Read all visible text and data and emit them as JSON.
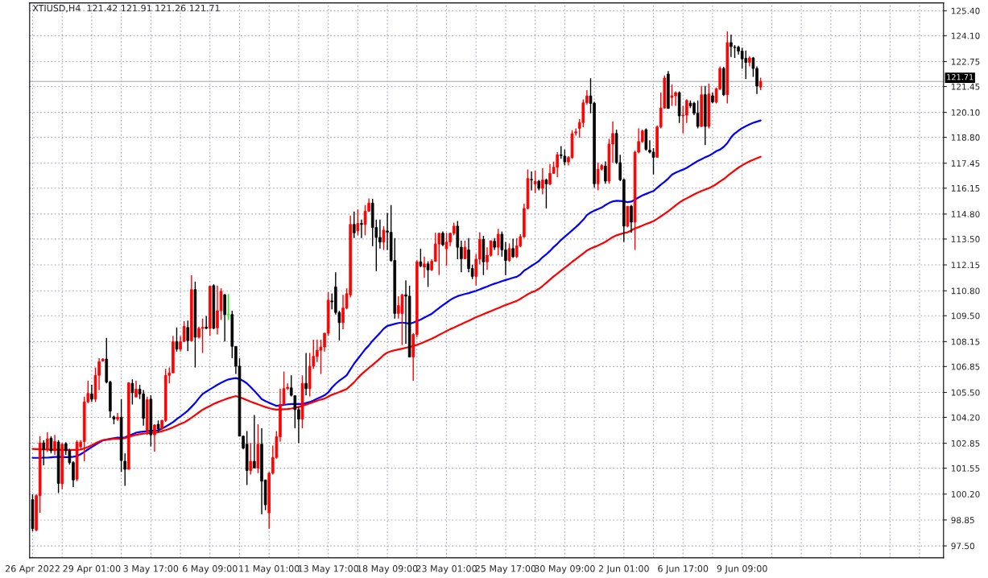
{
  "chart_data": {
    "type": "candlestick",
    "title": "XTIUSD,H4  121.42 121.91 121.26 121.71",
    "categories": [
      "26 Apr 2022",
      null,
      null,
      null,
      null,
      null,
      null,
      null,
      null,
      null,
      null,
      null,
      null,
      null,
      null,
      null,
      "29 Apr 01:00",
      null,
      null,
      null,
      null,
      null,
      null,
      null,
      null,
      null,
      null,
      null,
      null,
      null,
      null,
      null,
      "3 May 17:00",
      null,
      null,
      null,
      null,
      null,
      null,
      null,
      null,
      null,
      null,
      null,
      null,
      null,
      null,
      null,
      "6 May 09:00",
      null,
      null,
      null,
      null,
      null,
      null,
      null,
      null,
      null,
      null,
      null,
      null,
      null,
      null,
      null,
      "11 May 01:00",
      null,
      null,
      null,
      null,
      null,
      null,
      null,
      null,
      null,
      null,
      null,
      null,
      null,
      null,
      null,
      "13 May 17:00",
      null,
      null,
      null,
      null,
      null,
      null,
      null,
      null,
      null,
      null,
      null,
      null,
      null,
      null,
      null,
      "18 May 09:00",
      null,
      null,
      null,
      null,
      null,
      null,
      null,
      null,
      null,
      null,
      null,
      null,
      null,
      null,
      null,
      "23 May 01:00",
      null,
      null,
      null,
      null,
      null,
      null,
      null,
      null,
      null,
      null,
      null,
      null,
      null,
      null,
      null,
      "25 May 17:00",
      null,
      null,
      null,
      null,
      null,
      null,
      null,
      null,
      null,
      null,
      null,
      null,
      null,
      null,
      null,
      "30 May 09:00",
      null,
      null,
      null,
      null,
      null,
      null,
      null,
      null,
      null,
      null,
      null,
      null,
      null,
      null,
      null,
      "2 Jun 01:00",
      null,
      null,
      null,
      null,
      null,
      null,
      null,
      null,
      null,
      null,
      null,
      null,
      null,
      null,
      null,
      "6 Jun 17:00",
      null,
      null,
      null,
      null,
      null,
      null,
      null,
      null,
      null,
      null,
      null,
      null,
      null,
      null,
      null,
      "9 Jun 09:00",
      null,
      null,
      null,
      null,
      null
    ],
    "ohlc": [
      [
        99.91,
        100.19,
        98.26,
        98.4
      ],
      [
        98.33,
        100.19,
        98.26,
        100.12
      ],
      [
        100.12,
        103.22,
        99.22,
        102.87
      ],
      [
        102.87,
        103.01,
        101.7,
        102.53
      ],
      [
        102.53,
        103.42,
        102.39,
        103.08
      ],
      [
        103.11,
        103.22,
        102.32,
        102.46
      ],
      [
        102.46,
        103.29,
        102.25,
        102.94
      ],
      [
        102.91,
        103.01,
        100.25,
        100.76
      ],
      [
        100.74,
        102.87,
        100.46,
        102.8
      ],
      [
        102.83,
        102.91,
        102.25,
        102.46
      ],
      [
        102.46,
        102.56,
        101.73,
        101.84
      ],
      [
        101.84,
        101.91,
        100.57,
        100.94
      ],
      [
        100.98,
        103.01,
        100.87,
        102.91
      ],
      [
        102.67,
        103.01,
        102.53,
        102.91
      ],
      [
        102.94,
        105.28,
        101.91,
        105.01
      ],
      [
        105.01,
        106.11,
        104.94,
        105.45
      ],
      [
        105.42,
        105.9,
        105.01,
        105.15
      ],
      [
        105.15,
        106.8,
        105.01,
        106.39
      ],
      [
        106.39,
        107.28,
        105.63,
        107.1
      ],
      [
        107.14,
        107.28,
        107.1,
        107.24
      ],
      [
        107.24,
        108.34,
        105.97,
        106.04
      ],
      [
        106.04,
        106.11,
        104.18,
        104.53
      ],
      [
        104.22,
        104.29,
        103.84,
        104.11
      ],
      [
        104.11,
        104.43,
        104.02,
        104.21
      ],
      [
        104.21,
        105.15,
        101.36,
        101.95
      ],
      [
        101.91,
        102.32,
        100.63,
        101.49
      ],
      [
        101.49,
        106.04,
        101.49,
        106.0
      ],
      [
        105.97,
        106.18,
        104.87,
        105.49
      ],
      [
        105.26,
        106.11,
        105.26,
        105.67
      ],
      [
        105.67,
        105.9,
        105.15,
        105.42
      ],
      [
        105.42,
        105.63,
        103.77,
        104.15
      ],
      [
        103.49,
        105.28,
        103.29,
        105.12
      ],
      [
        105.15,
        105.35,
        102.69,
        103.29
      ],
      [
        103.29,
        103.84,
        102.42,
        103.8
      ],
      [
        103.84,
        104.04,
        103.42,
        103.6
      ],
      [
        103.6,
        104.07,
        103.56,
        104.04
      ],
      [
        104.04,
        106.73,
        103.97,
        106.39
      ],
      [
        106.39,
        106.8,
        105.97,
        106.52
      ],
      [
        106.52,
        108.45,
        106.52,
        108.15
      ],
      [
        108.15,
        108.89,
        107.63,
        107.76
      ],
      [
        107.76,
        108.45,
        107.63,
        108.15
      ],
      [
        108.15,
        109.21,
        108.15,
        108.94
      ],
      [
        108.89,
        109.25,
        107.65,
        108.2
      ],
      [
        108.2,
        111.62,
        108.15,
        110.86
      ],
      [
        110.86,
        111.28,
        106.8,
        108.38
      ],
      [
        108.38,
        108.93,
        108.31,
        108.84
      ],
      [
        108.84,
        109.35,
        107.56,
        108.89
      ],
      [
        108.91,
        109.49,
        108.8,
        108.84
      ],
      [
        108.84,
        111.04,
        108.45,
        111.04
      ],
      [
        111.07,
        111.14,
        108.8,
        108.84
      ],
      [
        108.87,
        111.07,
        108.52,
        109.76
      ],
      [
        109.76,
        110.93,
        109.28,
        110.77
      ],
      [
        110.59,
        110.63,
        108.15,
        109.56
      ],
      [
        109.56,
        110.63,
        109.28,
        109.56
      ],
      [
        109.56,
        109.76,
        107.28,
        107.9
      ],
      [
        107.9,
        107.9,
        106.46,
        106.87
      ],
      [
        106.87,
        107.28,
        103.22,
        103.22
      ],
      [
        103.22,
        103.25,
        102.53,
        102.6
      ],
      [
        102.8,
        103.49,
        100.67,
        101.43
      ],
      [
        101.43,
        102.87,
        101.22,
        101.91
      ],
      [
        101.91,
        104.32,
        101.56,
        101.56
      ],
      [
        101.56,
        103.84,
        101.29,
        102.8
      ],
      [
        102.8,
        103.63,
        99.15,
        100.88
      ],
      [
        100.94,
        100.94,
        99.36,
        99.64
      ],
      [
        99.22,
        101.36,
        98.4,
        101.29
      ],
      [
        101.29,
        102.73,
        101.22,
        102.11
      ],
      [
        102.11,
        103.49,
        102.05,
        103.19
      ],
      [
        103.19,
        105.7,
        102.94,
        104.87
      ],
      [
        104.87,
        106.59,
        104.87,
        105.7
      ],
      [
        105.7,
        105.97,
        105.63,
        105.77
      ],
      [
        105.74,
        106.39,
        105.29,
        105.35
      ],
      [
        105.33,
        105.35,
        103.63,
        104.6
      ],
      [
        104.6,
        104.73,
        102.87,
        104.11
      ],
      [
        104.11,
        106.39,
        103.63,
        105.97
      ],
      [
        105.97,
        107.56,
        105.35,
        105.7
      ],
      [
        105.7,
        107.56,
        105.29,
        106.87
      ],
      [
        106.87,
        108.25,
        106.73,
        107.38
      ],
      [
        107.38,
        108.25,
        107.08,
        107.7
      ],
      [
        107.7,
        108.25,
        106.46,
        107.87
      ],
      [
        107.87,
        108.59,
        107.63,
        108.59
      ],
      [
        108.59,
        110.73,
        108.45,
        110.31
      ],
      [
        110.27,
        110.66,
        109.83,
        110.22
      ],
      [
        111.0,
        111.76,
        109.56,
        109.67
      ],
      [
        109.67,
        109.76,
        108.2,
        109.14
      ],
      [
        109.14,
        110.59,
        108.79,
        109.9
      ],
      [
        109.9,
        110.93,
        109.83,
        110.65
      ],
      [
        110.59,
        114.72,
        110.45,
        114.26
      ],
      [
        114.26,
        114.93,
        113.55,
        113.82
      ],
      [
        113.93,
        115.04,
        113.69,
        114.31
      ],
      [
        114.31,
        114.51,
        113.55,
        114.26
      ],
      [
        114.26,
        115.27,
        113.69,
        114.95
      ],
      [
        114.95,
        115.61,
        114.93,
        115.37
      ],
      [
        115.37,
        115.59,
        113.13,
        114.1
      ],
      [
        114.1,
        114.51,
        111.83,
        113.58
      ],
      [
        113.58,
        114.51,
        113.0,
        113.34
      ],
      [
        113.34,
        114.17,
        112.93,
        113.96
      ],
      [
        113.92,
        114.86,
        112.93,
        113.86
      ],
      [
        113.85,
        115.27,
        112.31,
        112.38
      ],
      [
        112.38,
        113.55,
        109.35,
        109.62
      ],
      [
        109.62,
        110.52,
        109.35,
        110.03
      ],
      [
        109.62,
        110.65,
        107.97,
        110.59
      ],
      [
        110.59,
        111.34,
        108.04,
        110.52
      ],
      [
        110.52,
        111.07,
        107.35,
        107.35
      ],
      [
        107.35,
        108.59,
        106.11,
        108.52
      ],
      [
        108.52,
        112.38,
        108.38,
        112.31
      ],
      [
        112.31,
        113.0,
        112.03,
        112.1
      ],
      [
        112.03,
        112.58,
        111.48,
        112.2
      ],
      [
        112.2,
        112.34,
        111.0,
        111.89
      ],
      [
        111.89,
        112.45,
        111.83,
        112.34
      ],
      [
        112.34,
        113.82,
        112.31,
        113.24
      ],
      [
        113.24,
        113.82,
        111.62,
        113.8
      ],
      [
        113.8,
        113.89,
        113.13,
        113.2
      ],
      [
        112.99,
        113.82,
        112.1,
        113.34
      ],
      [
        113.34,
        113.82,
        113.13,
        113.8
      ],
      [
        113.8,
        114.35,
        113.69,
        114.17
      ],
      [
        114.17,
        114.44,
        112.45,
        113.07
      ],
      [
        113.07,
        113.41,
        111.76,
        112.47
      ],
      [
        112.47,
        113.41,
        112.45,
        113.07
      ],
      [
        112.93,
        113.55,
        111.76,
        111.96
      ],
      [
        111.96,
        112.17,
        111.41,
        111.55
      ],
      [
        111.55,
        112.72,
        111.07,
        112.45
      ],
      [
        112.45,
        113.85,
        112.17,
        113.48
      ],
      [
        113.48,
        113.66,
        111.62,
        112.31
      ],
      [
        112.31,
        113.07,
        111.89,
        112.65
      ],
      [
        112.65,
        113.41,
        112.58,
        113.41
      ],
      [
        113.38,
        113.55,
        112.93,
        113.07
      ],
      [
        113.07,
        114.03,
        112.65,
        113.75
      ],
      [
        113.75,
        113.89,
        112.58,
        112.93
      ],
      [
        112.93,
        113.34,
        111.62,
        112.38
      ],
      [
        112.38,
        113.27,
        112.31,
        113.0
      ],
      [
        113.0,
        113.52,
        112.51,
        112.58
      ],
      [
        112.58,
        113.55,
        112.51,
        113.14
      ],
      [
        113.14,
        113.75,
        113.07,
        113.62
      ],
      [
        113.62,
        115.34,
        113.55,
        115.09
      ],
      [
        115.09,
        117.13,
        115.04,
        116.65
      ],
      [
        116.61,
        117.02,
        116.03,
        116.58
      ],
      [
        116.37,
        117.06,
        115.89,
        116.51
      ],
      [
        116.51,
        116.58,
        116.03,
        116.14
      ],
      [
        116.14,
        117.2,
        115.82,
        116.58
      ],
      [
        116.58,
        116.65,
        115.09,
        116.37
      ],
      [
        116.37,
        117.41,
        116.3,
        116.92
      ],
      [
        116.92,
        117.54,
        116.92,
        117.24
      ],
      [
        117.24,
        118.03,
        116.72,
        117.89
      ],
      [
        117.89,
        118.34,
        117.68,
        117.85
      ],
      [
        117.82,
        118.16,
        117.34,
        117.52
      ],
      [
        117.52,
        117.82,
        117.34,
        117.75
      ],
      [
        117.75,
        119.17,
        117.68,
        118.99
      ],
      [
        119.03,
        119.27,
        118.89,
        119.09
      ],
      [
        119.27,
        119.75,
        118.78,
        119.57
      ],
      [
        119.57,
        120.78,
        119.33,
        120.6
      ],
      [
        120.6,
        121.26,
        120.51,
        120.96
      ],
      [
        120.96,
        121.88,
        120.05,
        120.57
      ],
      [
        120.58,
        120.65,
        116.17,
        116.38
      ],
      [
        116.38,
        117.48,
        116.03,
        117.14
      ],
      [
        117.14,
        117.41,
        117.07,
        117.34
      ],
      [
        117.3,
        117.55,
        116.38,
        116.52
      ],
      [
        116.52,
        118.72,
        116.38,
        118.45
      ],
      [
        118.45,
        119.62,
        117.48,
        119.0
      ],
      [
        119.0,
        119.2,
        117.41,
        117.48
      ],
      [
        117.48,
        117.89,
        116.52,
        116.59
      ],
      [
        116.59,
        116.65,
        113.35,
        114.17
      ],
      [
        114.17,
        115.21,
        114.11,
        115.21
      ],
      [
        115.21,
        115.28,
        113.83,
        114.38
      ],
      [
        114.38,
        118.1,
        112.93,
        118.03
      ],
      [
        118.03,
        119.27,
        117.96,
        118.58
      ],
      [
        118.58,
        119.2,
        118.51,
        119.13
      ],
      [
        119.2,
        119.27,
        118.1,
        118.17
      ],
      [
        118.13,
        118.65,
        117.96,
        118.03
      ],
      [
        118.03,
        118.24,
        116.86,
        117.76
      ],
      [
        117.76,
        119.41,
        117.76,
        119.34
      ],
      [
        119.34,
        121.13,
        119.27,
        120.33
      ],
      [
        120.33,
        122.03,
        120.31,
        121.89
      ],
      [
        122.1,
        122.26,
        120.28,
        120.31
      ],
      [
        120.88,
        121.55,
        120.44,
        120.97
      ],
      [
        120.97,
        121.2,
        120.44,
        121.13
      ],
      [
        121.13,
        121.2,
        119.55,
        119.92
      ],
      [
        119.92,
        120.44,
        119.0,
        119.96
      ],
      [
        119.96,
        120.79,
        119.55,
        120.72
      ],
      [
        120.58,
        120.72,
        120.33,
        120.44
      ],
      [
        120.58,
        120.65,
        119.96,
        120.06
      ],
      [
        120.06,
        120.72,
        119.27,
        119.37
      ],
      [
        119.37,
        121.48,
        119.34,
        121.02
      ],
      [
        121.02,
        121.48,
        118.4,
        119.37
      ],
      [
        119.37,
        121.61,
        119.27,
        121.06
      ],
      [
        120.97,
        121.13,
        120.58,
        120.65
      ],
      [
        120.64,
        121.4,
        120.57,
        121.33
      ],
      [
        121.33,
        122.5,
        121.26,
        122.39
      ],
      [
        122.39,
        122.48,
        120.96,
        121.02
      ],
      [
        121.02,
        124.32,
        120.57,
        123.74
      ],
      [
        123.74,
        124.16,
        122.99,
        123.54
      ],
      [
        123.51,
        123.61,
        122.94,
        123.48
      ],
      [
        123.5,
        123.58,
        123.12,
        123.3
      ],
      [
        123.3,
        123.47,
        122.37,
        122.89
      ],
      [
        122.92,
        123.33,
        121.84,
        122.71
      ],
      [
        122.71,
        123.03,
        122.5,
        122.94
      ],
      [
        122.94,
        122.99,
        121.95,
        122.39
      ],
      [
        122.39,
        122.5,
        121.06,
        121.47
      ],
      [
        121.42,
        121.91,
        121.26,
        121.71
      ]
    ],
    "colors": [
      "#000000",
      "#ff0000",
      "#ff0000",
      "#000000",
      "#ff0000",
      "#000000",
      "#ff0000",
      "#000000",
      "#ff0000",
      "#000000",
      "#000000",
      "#000000",
      "#ff0000",
      "#ff0000",
      "#ff0000",
      "#ff0000",
      "#000000",
      "#ff0000",
      "#ff0000",
      "#ff0000",
      "#000000",
      "#000000",
      "#000000",
      "#ff0000",
      "#000000",
      "#000000",
      "#ff0000",
      "#000000",
      "#ff0000",
      "#000000",
      "#000000",
      "#ff0000",
      "#000000",
      "#ff0000",
      "#000000",
      "#ff0000",
      "#ff0000",
      "#ff0000",
      "#ff0000",
      "#000000",
      "#ff0000",
      "#ff0000",
      "#000000",
      "#ff0000",
      "#000000",
      "#ff0000",
      "#ff0000",
      "#000000",
      "#ff0000",
      "#000000",
      "#ff0000",
      "#ff0000",
      "#000000",
      "#00ff00",
      "#000000",
      "#000000",
      "#000000",
      "#000000",
      "#000000",
      "#ff0000",
      "#000000",
      "#ff0000",
      "#000000",
      "#000000",
      "#ff0000",
      "#ff0000",
      "#ff0000",
      "#ff0000",
      "#ff0000",
      "#ff0000",
      "#000000",
      "#000000",
      "#000000",
      "#ff0000",
      "#000000",
      "#ff0000",
      "#ff0000",
      "#ff0000",
      "#ff0000",
      "#ff0000",
      "#ff0000",
      "#000000",
      "#000000",
      "#000000",
      "#ff0000",
      "#ff0000",
      "#ff0000",
      "#000000",
      "#ff0000",
      "#000000",
      "#ff0000",
      "#ff0000",
      "#000000",
      "#000000",
      "#000000",
      "#ff0000",
      "#000000",
      "#000000",
      "#000000",
      "#ff0000",
      "#ff0000",
      "#000000",
      "#000000",
      "#ff0000",
      "#ff0000",
      "#000000",
      "#ff0000",
      "#000000",
      "#ff0000",
      "#ff0000",
      "#ff0000",
      "#000000",
      "#ff0000",
      "#ff0000",
      "#ff0000",
      "#000000",
      "#000000",
      "#ff0000",
      "#000000",
      "#000000",
      "#ff0000",
      "#ff0000",
      "#000000",
      "#ff0000",
      "#ff0000",
      "#000000",
      "#ff0000",
      "#000000",
      "#000000",
      "#ff0000",
      "#000000",
      "#ff0000",
      "#ff0000",
      "#ff0000",
      "#ff0000",
      "#000000",
      "#ff0000",
      "#000000",
      "#ff0000",
      "#000000",
      "#ff0000",
      "#ff0000",
      "#ff0000",
      "#000000",
      "#000000",
      "#ff0000",
      "#ff0000",
      "#ff0000",
      "#ff0000",
      "#ff0000",
      "#ff0000",
      "#000000",
      "#000000",
      "#ff0000",
      "#ff0000",
      "#000000",
      "#ff0000",
      "#ff0000",
      "#000000",
      "#000000",
      "#000000",
      "#ff0000",
      "#000000",
      "#ff0000",
      "#ff0000",
      "#ff0000",
      "#000000",
      "#000000",
      "#000000",
      "#ff0000",
      "#ff0000",
      "#ff0000",
      "#000000",
      "#ff0000",
      "#ff0000",
      "#000000",
      "#ff0000",
      "#ff0000",
      "#000000",
      "#000000",
      "#000000",
      "#ff0000",
      "#000000",
      "#ff0000",
      "#000000",
      "#ff0000",
      "#ff0000",
      "#000000",
      "#ff0000",
      "#000000",
      "#000000",
      "#000000",
      "#000000",
      "#000000",
      "#ff0000",
      "#000000",
      "#000000",
      "#ff0000"
    ],
    "series": [
      {
        "type": "line",
        "color": "#0000ff",
        "values": [
          102.09,
          102.09,
          102.09,
          102.1,
          102.1,
          102.12,
          102.14,
          102.14,
          102.14,
          102.13,
          102.13,
          102.15,
          102.18,
          102.28,
          102.4,
          102.53,
          102.65,
          102.77,
          102.89,
          103.0,
          103.04,
          103.08,
          103.11,
          103.14,
          103.13,
          103.16,
          103.24,
          103.32,
          103.4,
          103.44,
          103.46,
          103.48,
          103.5,
          103.51,
          103.52,
          103.62,
          103.72,
          103.83,
          103.95,
          104.11,
          104.25,
          104.39,
          104.55,
          104.75,
          104.95,
          105.2,
          105.42,
          105.54,
          105.66,
          105.78,
          105.9,
          106.0,
          106.1,
          106.18,
          106.22,
          106.25,
          106.2,
          106.1,
          105.97,
          105.78,
          105.58,
          105.37,
          105.15,
          105.05,
          104.96,
          104.88,
          104.8,
          104.82,
          104.85,
          104.88,
          104.9,
          104.9,
          104.9,
          104.9,
          104.95,
          105.0,
          105.08,
          105.17,
          105.26,
          105.35,
          105.5,
          105.75,
          105.95,
          106.11,
          106.25,
          106.4,
          106.7,
          107.0,
          107.25,
          107.5,
          107.75,
          107.95,
          108.2,
          108.4,
          108.6,
          108.82,
          108.97,
          109.02,
          109.07,
          109.12,
          109.14,
          109.12,
          109.08,
          109.14,
          109.22,
          109.3,
          109.4,
          109.5,
          109.6,
          109.75,
          109.9,
          110.05,
          110.18,
          110.32,
          110.43,
          110.52,
          110.58,
          110.63,
          110.68,
          110.74,
          110.8,
          110.87,
          110.95,
          111.02,
          111.1,
          111.17,
          111.23,
          111.3,
          111.36,
          111.42,
          111.48,
          111.53,
          111.65,
          111.85,
          111.97,
          112.1,
          112.22,
          112.35,
          112.55,
          112.7,
          112.88,
          113.08,
          113.25,
          113.45,
          113.62,
          113.78,
          113.95,
          114.12,
          114.3,
          114.5,
          114.75,
          114.88,
          114.98,
          115.06,
          115.14,
          115.27,
          115.38,
          115.46,
          115.49,
          115.48,
          115.46,
          115.42,
          115.45,
          115.55,
          115.67,
          115.77,
          115.85,
          115.93,
          116.0,
          116.17,
          116.33,
          116.48,
          116.65,
          116.85,
          116.96,
          117.04,
          117.12,
          117.21,
          117.33,
          117.45,
          117.57,
          117.66,
          117.76,
          117.84,
          117.95,
          118.08,
          118.16,
          118.3,
          118.5,
          118.8,
          119.0,
          119.15,
          119.28,
          119.38,
          119.48,
          119.56,
          119.62,
          119.68
        ]
      },
      {
        "type": "line",
        "color": "#ff0000",
        "values": [
          102.56,
          102.55,
          102.54,
          102.53,
          102.52,
          102.51,
          102.51,
          102.51,
          102.5,
          102.5,
          102.5,
          102.5,
          102.5,
          102.52,
          102.58,
          102.66,
          102.75,
          102.85,
          102.94,
          103.01,
          103.04,
          103.06,
          103.08,
          103.08,
          103.08,
          103.12,
          103.18,
          103.24,
          103.29,
          103.32,
          103.35,
          103.37,
          103.39,
          103.41,
          103.42,
          103.48,
          103.54,
          103.6,
          103.68,
          103.77,
          103.86,
          103.93,
          104.05,
          104.18,
          104.32,
          104.46,
          104.6,
          104.7,
          104.8,
          104.9,
          104.98,
          105.06,
          105.13,
          105.2,
          105.26,
          105.31,
          105.25,
          105.18,
          105.1,
          105.02,
          104.95,
          104.88,
          104.81,
          104.74,
          104.68,
          104.63,
          104.6,
          104.61,
          104.62,
          104.63,
          104.66,
          104.7,
          104.75,
          104.8,
          104.86,
          104.93,
          105.0,
          105.07,
          105.13,
          105.18,
          105.28,
          105.38,
          105.45,
          105.52,
          105.6,
          105.68,
          105.85,
          106.03,
          106.25,
          106.45,
          106.62,
          106.78,
          106.93,
          107.1,
          107.27,
          107.45,
          107.58,
          107.65,
          107.7,
          107.74,
          107.78,
          107.83,
          107.87,
          107.92,
          107.98,
          108.05,
          108.13,
          108.22,
          108.3,
          108.4,
          108.5,
          108.6,
          108.7,
          108.8,
          108.88,
          108.97,
          109.06,
          109.15,
          109.24,
          109.33,
          109.42,
          109.5,
          109.58,
          109.66,
          109.74,
          109.82,
          109.9,
          109.98,
          110.06,
          110.13,
          110.2,
          110.27,
          110.38,
          110.5,
          110.62,
          110.72,
          110.79,
          110.9,
          111.05,
          111.21,
          111.38,
          111.55,
          111.7,
          111.85,
          112.0,
          112.15,
          112.31,
          112.45,
          112.6,
          112.75,
          112.9,
          113.0,
          113.08,
          113.16,
          113.25,
          113.35,
          113.48,
          113.6,
          113.69,
          113.75,
          113.81,
          113.85,
          113.95,
          114.05,
          114.12,
          114.2,
          114.28,
          114.35,
          114.43,
          114.55,
          114.68,
          114.81,
          114.95,
          115.1,
          115.25,
          115.4,
          115.52,
          115.62,
          115.72,
          115.82,
          115.92,
          116.0,
          116.08,
          116.15,
          116.24,
          116.36,
          116.5,
          116.62,
          116.78,
          116.93,
          117.08,
          117.22,
          117.34,
          117.45,
          117.55,
          117.63,
          117.71,
          117.79
        ]
      }
    ],
    "ylim": [
      96.88,
      125.81
    ],
    "yticks": [
      {
        "value": 125.4,
        "label": "125.40"
      },
      {
        "value": 124.1,
        "label": "124.10"
      },
      {
        "value": 122.75,
        "label": "122.75"
      },
      {
        "value": 121.45,
        "label": "121.45"
      },
      {
        "value": 120.1,
        "label": "120.10"
      },
      {
        "value": 118.8,
        "label": "118.80"
      },
      {
        "value": 117.45,
        "label": "117.45"
      },
      {
        "value": 116.15,
        "label": "116.15"
      },
      {
        "value": 114.8,
        "label": "114.80"
      },
      {
        "value": 113.5,
        "label": "113.50"
      },
      {
        "value": 112.15,
        "label": "112.15"
      },
      {
        "value": 110.8,
        "label": "110.80"
      },
      {
        "value": 109.5,
        "label": "109.50"
      },
      {
        "value": 108.15,
        "label": "108.15"
      },
      {
        "value": 106.85,
        "label": "106.85"
      },
      {
        "value": 105.5,
        "label": "105.50"
      },
      {
        "value": 104.2,
        "label": "104.20"
      },
      {
        "value": 102.85,
        "label": "102.85"
      },
      {
        "value": 101.55,
        "label": "101.55"
      },
      {
        "value": 100.2,
        "label": "100.20"
      },
      {
        "value": 98.85,
        "label": "98.85"
      },
      {
        "value": 97.5,
        "label": "97.50"
      }
    ],
    "ref_lines": [
      {
        "axis": "y",
        "value": 121.71,
        "label": "121.71",
        "color": "#c0c0c0"
      }
    ],
    "grid": true,
    "legend": false
  }
}
